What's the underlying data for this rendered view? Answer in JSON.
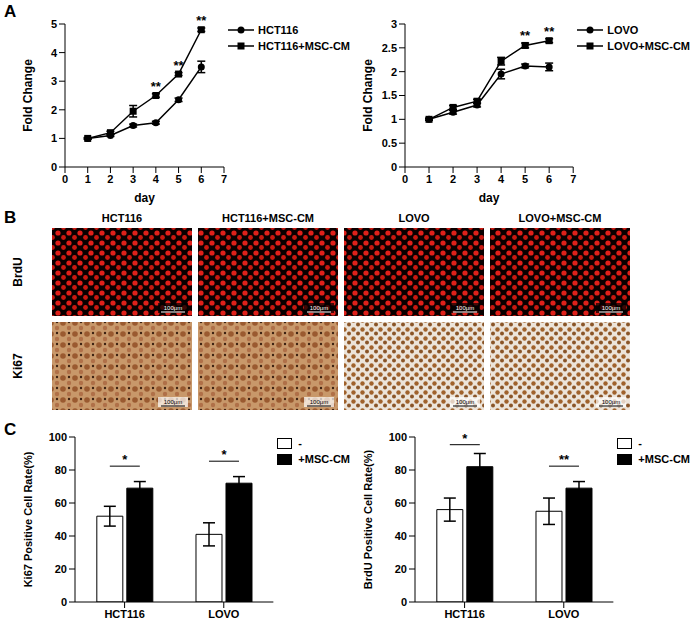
{
  "panel_labels": [
    "A",
    "B",
    "C"
  ],
  "chart_data": [
    {
      "type": "line",
      "x_label": "day",
      "y_label": "Fold Change",
      "xlim": [
        0,
        7
      ],
      "xticks": [
        0,
        1,
        2,
        3,
        4,
        5,
        6,
        7
      ],
      "ylim": [
        0,
        5
      ],
      "yticks": [
        0,
        1,
        2,
        3,
        4,
        5
      ],
      "legend": "upper right",
      "x": [
        1,
        2,
        3,
        4,
        5,
        6
      ],
      "series": [
        {
          "name": "HCT116",
          "color": "#000000",
          "marker": "circle",
          "values": [
            1.0,
            1.1,
            1.45,
            1.55,
            2.35,
            3.5
          ],
          "errors": [
            0.02,
            0.03,
            0.05,
            0.05,
            0.06,
            0.2
          ]
        },
        {
          "name": "HCT116+MSC-CM",
          "color": "#000000",
          "marker": "square",
          "values": [
            1.0,
            1.2,
            1.95,
            2.5,
            3.25,
            4.8
          ],
          "errors": [
            0.03,
            0.05,
            0.2,
            0.06,
            0.05,
            0.06
          ]
        }
      ],
      "annotations": [
        {
          "x": 4,
          "text": "**"
        },
        {
          "x": 5,
          "text": "**"
        },
        {
          "x": 6,
          "text": "**"
        }
      ]
    },
    {
      "type": "line",
      "x_label": "day",
      "y_label": "Fold Change",
      "xlim": [
        0,
        7
      ],
      "xticks": [
        0,
        1,
        2,
        3,
        4,
        5,
        6,
        7
      ],
      "ylim": [
        0,
        3
      ],
      "yticks": [
        0,
        0.5,
        1,
        1.5,
        2,
        2.5,
        3
      ],
      "legend": "upper right",
      "x": [
        1,
        2,
        3,
        4,
        5,
        6
      ],
      "series": [
        {
          "name": "LOVO",
          "color": "#000000",
          "marker": "circle",
          "values": [
            1.0,
            1.15,
            1.3,
            1.95,
            2.12,
            2.1
          ],
          "errors": [
            0.02,
            0.04,
            0.04,
            0.1,
            0.04,
            0.08
          ]
        },
        {
          "name": "LOVO+MSC-CM",
          "color": "#000000",
          "marker": "square",
          "values": [
            1.0,
            1.25,
            1.38,
            2.22,
            2.55,
            2.65
          ],
          "errors": [
            0.02,
            0.04,
            0.04,
            0.08,
            0.05,
            0.04
          ]
        }
      ],
      "annotations": [
        {
          "x": 5,
          "text": "**"
        },
        {
          "x": 6,
          "text": "**"
        }
      ]
    },
    {
      "type": "bar",
      "y_label": "Ki67 Positive Cell Rate(%)",
      "categories": [
        "HCT116",
        "LOVO"
      ],
      "ylim": [
        0,
        100
      ],
      "yticks": [
        0,
        20,
        40,
        60,
        80,
        100
      ],
      "legend": "upper right",
      "series": [
        {
          "name": "-",
          "color": "#ffffff",
          "values": [
            52,
            41
          ],
          "errors": [
            6,
            7
          ]
        },
        {
          "name": "+MSC-CM",
          "color": "#000000",
          "values": [
            69,
            72
          ],
          "errors": [
            4,
            4
          ]
        }
      ],
      "annotations": [
        {
          "category": "HCT116",
          "text": "*"
        },
        {
          "category": "LOVO",
          "text": "*"
        }
      ]
    },
    {
      "type": "bar",
      "y_label": "BrdU Positive Cell Rate(%)",
      "categories": [
        "HCT116",
        "LOVO"
      ],
      "ylim": [
        0,
        100
      ],
      "yticks": [
        0,
        20,
        40,
        60,
        80,
        100
      ],
      "legend": "upper right",
      "series": [
        {
          "name": "-",
          "color": "#ffffff",
          "values": [
            56,
            55
          ],
          "errors": [
            7,
            8
          ]
        },
        {
          "name": "+MSC-CM",
          "color": "#000000",
          "values": [
            82,
            69
          ],
          "errors": [
            8,
            4
          ]
        }
      ],
      "annotations": [
        {
          "category": "HCT116",
          "text": "*"
        },
        {
          "category": "LOVO",
          "text": "**"
        }
      ]
    }
  ],
  "image_grid": {
    "columns": [
      "HCT116",
      "HCT116+MSC-CM",
      "LOVO",
      "LOVO+MSC-CM"
    ],
    "rows": [
      "BrdU",
      "Ki67"
    ],
    "scale_bar": "100μm"
  }
}
